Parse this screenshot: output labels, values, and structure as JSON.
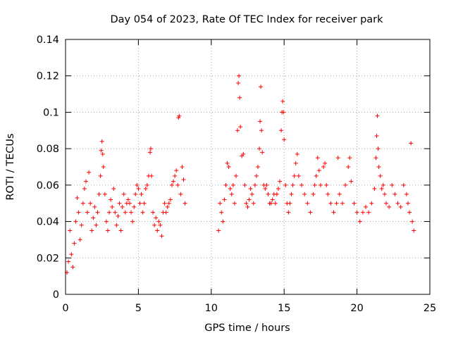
{
  "chart_data": {
    "type": "scatter",
    "title": "Day 054 of 2023, Rate Of TEC Index for receiver park",
    "xlabel": "GPS time / hours",
    "ylabel": "ROTI / TECUs",
    "xlim": [
      0,
      25
    ],
    "ylim": [
      0,
      0.14
    ],
    "x_ticks": [
      0,
      5,
      10,
      15,
      20,
      25
    ],
    "x_tick_labels": [
      "0",
      "5",
      "10",
      "15",
      "20",
      "25"
    ],
    "y_ticks": [
      0,
      0.02,
      0.04,
      0.06,
      0.08,
      0.1,
      0.12,
      0.14
    ],
    "y_tick_labels": [
      "0",
      "0.02",
      "0.04",
      "0.06",
      "0.08",
      "0.1",
      "0.12",
      "0.14"
    ],
    "grid": true,
    "marker": "+",
    "color": "#ff0000",
    "series": [
      {
        "points": [
          [
            0.1,
            0.012
          ],
          [
            0.2,
            0.018
          ],
          [
            0.3,
            0.035
          ],
          [
            0.4,
            0.022
          ],
          [
            0.5,
            0.015
          ],
          [
            0.6,
            0.028
          ],
          [
            0.7,
            0.04
          ],
          [
            0.8,
            0.053
          ],
          [
            0.9,
            0.045
          ],
          [
            1.0,
            0.03
          ],
          [
            1.1,
            0.038
          ],
          [
            1.2,
            0.05
          ],
          [
            1.3,
            0.058
          ],
          [
            1.4,
            0.062
          ],
          [
            1.5,
            0.045
          ],
          [
            1.6,
            0.067
          ],
          [
            1.7,
            0.05
          ],
          [
            1.8,
            0.035
          ],
          [
            1.9,
            0.042
          ],
          [
            2.0,
            0.048
          ],
          [
            2.1,
            0.038
          ],
          [
            2.2,
            0.045
          ],
          [
            2.3,
            0.055
          ],
          [
            2.4,
            0.065
          ],
          [
            2.45,
            0.079
          ],
          [
            2.5,
            0.084
          ],
          [
            2.55,
            0.077
          ],
          [
            2.6,
            0.07
          ],
          [
            2.7,
            0.055
          ],
          [
            2.8,
            0.04
          ],
          [
            2.9,
            0.035
          ],
          [
            3.0,
            0.045
          ],
          [
            3.1,
            0.052
          ],
          [
            3.2,
            0.048
          ],
          [
            3.3,
            0.058
          ],
          [
            3.4,
            0.045
          ],
          [
            3.5,
            0.038
          ],
          [
            3.6,
            0.043
          ],
          [
            3.7,
            0.05
          ],
          [
            3.8,
            0.035
          ],
          [
            3.9,
            0.048
          ],
          [
            4.0,
            0.055
          ],
          [
            4.1,
            0.045
          ],
          [
            4.2,
            0.05
          ],
          [
            4.3,
            0.052
          ],
          [
            4.4,
            0.05
          ],
          [
            4.5,
            0.045
          ],
          [
            4.6,
            0.04
          ],
          [
            4.7,
            0.048
          ],
          [
            4.8,
            0.055
          ],
          [
            4.9,
            0.06
          ],
          [
            5.0,
            0.058
          ],
          [
            5.1,
            0.05
          ],
          [
            5.2,
            0.055
          ],
          [
            5.3,
            0.045
          ],
          [
            5.4,
            0.05
          ],
          [
            5.5,
            0.058
          ],
          [
            5.6,
            0.06
          ],
          [
            5.7,
            0.065
          ],
          [
            5.8,
            0.078
          ],
          [
            5.85,
            0.08
          ],
          [
            5.9,
            0.065
          ],
          [
            6.0,
            0.045
          ],
          [
            6.1,
            0.038
          ],
          [
            6.2,
            0.042
          ],
          [
            6.3,
            0.035
          ],
          [
            6.4,
            0.04
          ],
          [
            6.5,
            0.038
          ],
          [
            6.6,
            0.032
          ],
          [
            6.7,
            0.045
          ],
          [
            6.8,
            0.05
          ],
          [
            6.9,
            0.045
          ],
          [
            7.0,
            0.048
          ],
          [
            7.1,
            0.05
          ],
          [
            7.2,
            0.052
          ],
          [
            7.3,
            0.06
          ],
          [
            7.4,
            0.062
          ],
          [
            7.5,
            0.065
          ],
          [
            7.6,
            0.068
          ],
          [
            7.7,
            0.06
          ],
          [
            7.75,
            0.097
          ],
          [
            7.8,
            0.098
          ],
          [
            7.9,
            0.055
          ],
          [
            8.0,
            0.07
          ],
          [
            8.1,
            0.063
          ],
          [
            8.2,
            0.05
          ],
          [
            10.5,
            0.035
          ],
          [
            10.6,
            0.05
          ],
          [
            10.7,
            0.045
          ],
          [
            10.8,
            0.04
          ],
          [
            10.9,
            0.052
          ],
          [
            11.0,
            0.06
          ],
          [
            11.1,
            0.072
          ],
          [
            11.2,
            0.07
          ],
          [
            11.3,
            0.058
          ],
          [
            11.4,
            0.055
          ],
          [
            11.5,
            0.06
          ],
          [
            11.6,
            0.05
          ],
          [
            11.7,
            0.065
          ],
          [
            11.8,
            0.09
          ],
          [
            11.85,
            0.116
          ],
          [
            11.9,
            0.12
          ],
          [
            11.95,
            0.108
          ],
          [
            12.0,
            0.092
          ],
          [
            12.1,
            0.076
          ],
          [
            12.2,
            0.077
          ],
          [
            12.3,
            0.06
          ],
          [
            12.4,
            0.05
          ],
          [
            12.5,
            0.048
          ],
          [
            12.6,
            0.052
          ],
          [
            12.7,
            0.058
          ],
          [
            12.8,
            0.055
          ],
          [
            12.9,
            0.05
          ],
          [
            13.0,
            0.06
          ],
          [
            13.1,
            0.065
          ],
          [
            13.2,
            0.07
          ],
          [
            13.3,
            0.08
          ],
          [
            13.35,
            0.095
          ],
          [
            13.4,
            0.114
          ],
          [
            13.45,
            0.09
          ],
          [
            13.5,
            0.078
          ],
          [
            13.6,
            0.06
          ],
          [
            13.7,
            0.058
          ],
          [
            13.8,
            0.06
          ],
          [
            13.9,
            0.055
          ],
          [
            14.0,
            0.05
          ],
          [
            14.1,
            0.05
          ],
          [
            14.2,
            0.052
          ],
          [
            14.3,
            0.055
          ],
          [
            14.4,
            0.05
          ],
          [
            14.5,
            0.055
          ],
          [
            14.6,
            0.058
          ],
          [
            14.7,
            0.062
          ],
          [
            14.8,
            0.09
          ],
          [
            14.85,
            0.1
          ],
          [
            14.9,
            0.106
          ],
          [
            14.95,
            0.1
          ],
          [
            15.0,
            0.085
          ],
          [
            15.1,
            0.06
          ],
          [
            15.2,
            0.05
          ],
          [
            15.3,
            0.045
          ],
          [
            15.4,
            0.05
          ],
          [
            15.5,
            0.055
          ],
          [
            15.6,
            0.06
          ],
          [
            15.7,
            0.065
          ],
          [
            15.8,
            0.072
          ],
          [
            15.9,
            0.077
          ],
          [
            16.0,
            0.065
          ],
          [
            16.2,
            0.06
          ],
          [
            16.4,
            0.055
          ],
          [
            16.6,
            0.05
          ],
          [
            16.8,
            0.045
          ],
          [
            17.0,
            0.055
          ],
          [
            17.1,
            0.06
          ],
          [
            17.2,
            0.065
          ],
          [
            17.3,
            0.075
          ],
          [
            17.4,
            0.068
          ],
          [
            17.5,
            0.06
          ],
          [
            17.7,
            0.07
          ],
          [
            17.8,
            0.072
          ],
          [
            17.9,
            0.06
          ],
          [
            18.0,
            0.055
          ],
          [
            18.2,
            0.05
          ],
          [
            18.4,
            0.045
          ],
          [
            18.6,
            0.05
          ],
          [
            18.7,
            0.075
          ],
          [
            18.8,
            0.055
          ],
          [
            19.0,
            0.05
          ],
          [
            19.2,
            0.06
          ],
          [
            19.4,
            0.07
          ],
          [
            19.5,
            0.075
          ],
          [
            19.6,
            0.062
          ],
          [
            19.8,
            0.05
          ],
          [
            20.0,
            0.045
          ],
          [
            20.2,
            0.04
          ],
          [
            20.4,
            0.045
          ],
          [
            20.6,
            0.048
          ],
          [
            20.8,
            0.045
          ],
          [
            21.0,
            0.05
          ],
          [
            21.2,
            0.058
          ],
          [
            21.3,
            0.075
          ],
          [
            21.35,
            0.087
          ],
          [
            21.4,
            0.098
          ],
          [
            21.45,
            0.08
          ],
          [
            21.5,
            0.07
          ],
          [
            21.6,
            0.065
          ],
          [
            21.7,
            0.058
          ],
          [
            21.8,
            0.06
          ],
          [
            21.9,
            0.055
          ],
          [
            22.0,
            0.05
          ],
          [
            22.2,
            0.048
          ],
          [
            22.4,
            0.06
          ],
          [
            22.6,
            0.055
          ],
          [
            22.8,
            0.05
          ],
          [
            23.0,
            0.048
          ],
          [
            23.2,
            0.06
          ],
          [
            23.4,
            0.055
          ],
          [
            23.5,
            0.05
          ],
          [
            23.6,
            0.045
          ],
          [
            23.7,
            0.083
          ],
          [
            23.8,
            0.04
          ],
          [
            23.9,
            0.035
          ]
        ]
      }
    ]
  }
}
